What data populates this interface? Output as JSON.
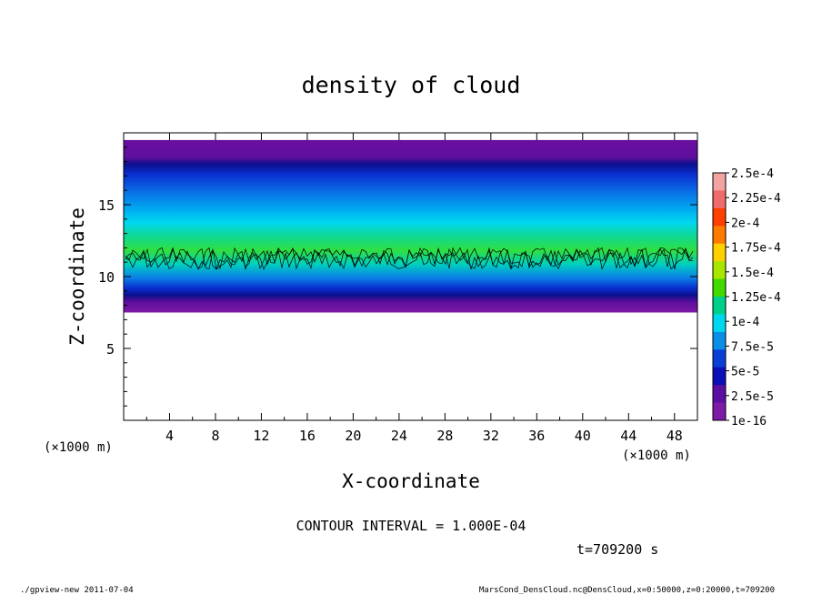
{
  "chart_data": {
    "type": "heatmap",
    "title": "density of cloud",
    "xlabel": "X-coordinate",
    "ylabel": "Z-coordinate",
    "x_unit": "(×1000 m)",
    "z_unit": "(×1000 m)",
    "xlim": [
      0,
      50
    ],
    "ylim": [
      0,
      20
    ],
    "x_ticks": [
      "4",
      "8",
      "12",
      "16",
      "20",
      "24",
      "28",
      "32",
      "36",
      "40",
      "44",
      "48"
    ],
    "y_ticks": [
      "5",
      "10",
      "15"
    ],
    "colorbar": {
      "labels": [
        "2.5e-4",
        "2.25e-4",
        "2e-4",
        "1.75e-4",
        "1.5e-4",
        "1.25e-4",
        "1e-4",
        "7.5e-5",
        "5e-5",
        "2.5e-5",
        "1e-16"
      ],
      "colors": [
        "#f4a3a3",
        "#f06b6b",
        "#ff3f00",
        "#ff7a00",
        "#ffd000",
        "#a6e600",
        "#41d900",
        "#00d08c",
        "#00d8f0",
        "#0a8fe6",
        "#0a3fd6",
        "#0a0fb8",
        "#5a0fa0",
        "#7d1aa6"
      ]
    },
    "cloud_band": {
      "z_base": [
        7.5,
        7.5
      ],
      "z_top": [
        19.5,
        19.5
      ],
      "peak_density_layer_z": [
        10,
        12.5
      ],
      "peak_density_value_approx": 0.00011
    },
    "contour_interval_text": "CONTOUR INTERVAL = 1.000E-04",
    "time_text": "t=709200 s"
  },
  "footer": {
    "left": "./gpview-new 2011-07-04",
    "right": "MarsCond_DensCloud.nc@DensCloud,x=0:50000,z=0:20000,t=709200"
  }
}
